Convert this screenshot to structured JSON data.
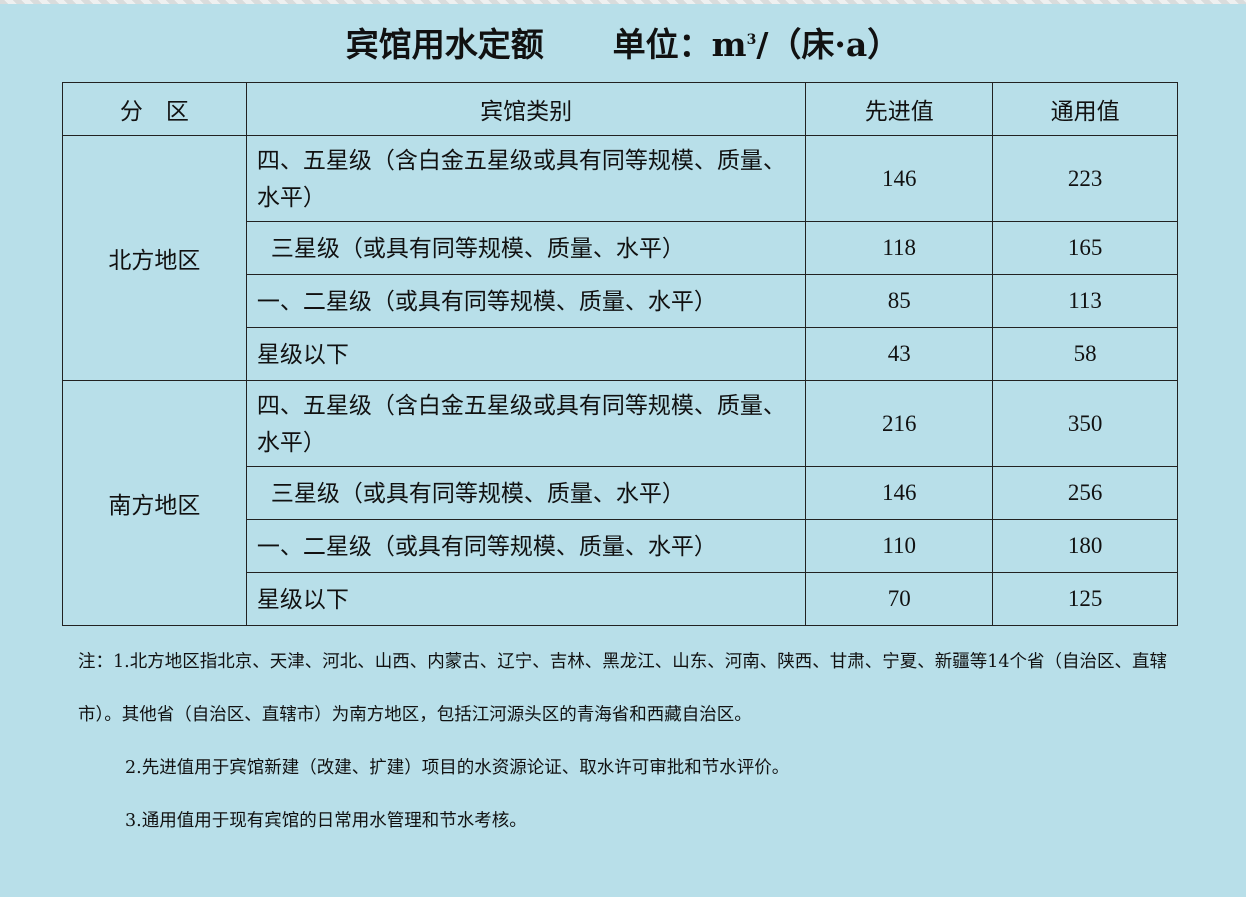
{
  "title": {
    "main": "宾馆用水定额",
    "unit_prefix": "单位：m",
    "unit_sup": "3",
    "unit_suffix": "/（床·a）"
  },
  "table": {
    "headers": [
      "分　区",
      "宾馆类别",
      "先进值",
      "通用值"
    ],
    "groups": [
      {
        "region": "北方地区",
        "rows": [
          {
            "category": "四、五星级（含白金五星级或具有同等规模、质量、水平）",
            "advanced": "146",
            "general": "223"
          },
          {
            "category": "三星级（或具有同等规模、质量、水平）",
            "advanced": "118",
            "general": "165"
          },
          {
            "category": "一、二星级（或具有同等规模、质量、水平）",
            "advanced": "85",
            "general": "113"
          },
          {
            "category": "星级以下",
            "advanced": "43",
            "general": "58"
          }
        ]
      },
      {
        "region": "南方地区",
        "rows": [
          {
            "category": "四、五星级（含白金五星级或具有同等规模、质量、水平）",
            "advanced": "216",
            "general": "350"
          },
          {
            "category": "三星级（或具有同等规模、质量、水平）",
            "advanced": "146",
            "general": "256"
          },
          {
            "category": "一、二星级（或具有同等规模、质量、水平）",
            "advanced": "110",
            "general": "180"
          },
          {
            "category": "星级以下",
            "advanced": "70",
            "general": "125"
          }
        ]
      }
    ]
  },
  "notes": [
    "注：1.北方地区指北京、天津、河北、山西、内蒙古、辽宁、吉林、黑龙江、山东、河南、陕西、甘肃、宁夏、新疆等14个省（自治区、直辖市）。其他省（自治区、直辖市）为南方地区，包括江河源头区的青海省和西藏自治区。",
    "2.先进值用于宾馆新建（改建、扩建）项目的水资源论证、取水许可审批和节水评价。",
    "3.通用值用于现有宾馆的日常用水管理和节水考核。"
  ],
  "colors": {
    "background": "#b8dfe9",
    "border": "#222222"
  }
}
